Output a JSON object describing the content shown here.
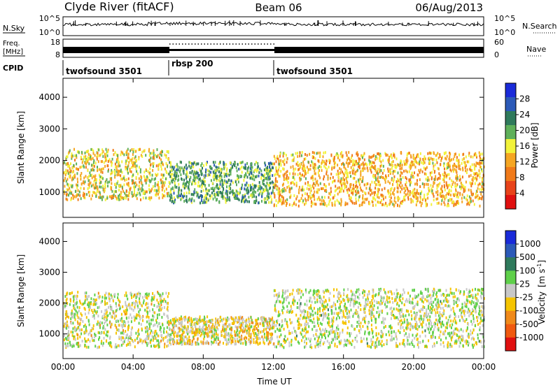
{
  "header": {
    "station": "Clyde River (fitACF)",
    "beam": "Beam 06",
    "date": "06/Aug/2013"
  },
  "panels": {
    "nsky_label": "N.Sky",
    "nsearch_label": "N.Search",
    "freq_label_line1": "Freq.",
    "freq_label_line2": "[MHz]",
    "nave_label": "Nave",
    "cpid_label": "CPID",
    "nsky_ticks": [
      "10^5",
      "10^0"
    ],
    "nsearch_ticks": [
      "10^5",
      "10^0"
    ],
    "freq_ticks": [
      "18",
      "8"
    ],
    "nave_ticks": [
      "60",
      "0"
    ]
  },
  "cpid_segments": [
    {
      "name": "twofsound 3501",
      "start_hour": 0,
      "end_hour": 6
    },
    {
      "name": "rbsp 200",
      "start_hour": 6,
      "end_hour": 12
    },
    {
      "name": "twofsound 3501",
      "start_hour": 12,
      "end_hour": 24
    }
  ],
  "colors": {
    "power_scale": [
      "#1a2bd9",
      "#2c5ab8",
      "#2f7a5c",
      "#5fb05a",
      "#f2f23a",
      "#f5a623",
      "#f07a1a",
      "#e8431a",
      "#e01010"
    ],
    "velocity_scale": [
      "#1a2bd9",
      "#2c5ab8",
      "#2f7a5c",
      "#5fd04a",
      "#c8c8c8",
      "#f5c400",
      "#f08a1a",
      "#f05a10",
      "#e01010"
    ]
  },
  "chart_data": [
    {
      "type": "heatmap",
      "panel": "power",
      "ylabel": "Slant Range [km]",
      "yticks": [
        1000,
        2000,
        3000,
        4000
      ],
      "ylim": [
        200,
        4600
      ],
      "xticks": [
        "00:00",
        "04:00",
        "08:00",
        "12:00",
        "16:00",
        "20:00",
        "00:00"
      ],
      "xlim_hours": [
        0,
        24
      ],
      "colorbar": {
        "label": "Power [dB]",
        "ticks": [
          "28",
          "24",
          "20",
          "16",
          "12",
          "8",
          "4"
        ],
        "range": [
          0,
          30
        ]
      },
      "bands": [
        {
          "start_hour": 0,
          "end_hour": 6,
          "range_km": [
            800,
            2400
          ],
          "power_db": 14
        },
        {
          "start_hour": 6,
          "end_hour": 12,
          "range_km": [
            700,
            2000
          ],
          "power_db": 20
        },
        {
          "start_hour": 12,
          "end_hour": 24,
          "range_km": [
            600,
            2300
          ],
          "power_db": 12
        }
      ]
    },
    {
      "type": "heatmap",
      "panel": "velocity",
      "ylabel": "Slant Range [km]",
      "xlabel": "Time UT",
      "yticks": [
        1000,
        2000,
        3000,
        4000
      ],
      "ylim": [
        200,
        4600
      ],
      "xticks": [
        "00:00",
        "04:00",
        "08:00",
        "12:00",
        "16:00",
        "20:00",
        "00:00"
      ],
      "xlim_hours": [
        0,
        24
      ],
      "colorbar": {
        "label": "Velocity",
        "label_unit": "[m s",
        "label_exp": "-1",
        "label_close": "]",
        "ticks": [
          "1000",
          "500",
          "100",
          "25",
          "-25",
          "-100",
          "-500",
          "-1000"
        ],
        "range": [
          -1200,
          1200
        ]
      },
      "bands": [
        {
          "start_hour": 0,
          "end_hour": 6,
          "range_km": [
            600,
            2400
          ],
          "velocity_ms": -25
        },
        {
          "start_hour": 6,
          "end_hour": 12,
          "range_km": [
            700,
            1600
          ],
          "velocity_ms": -150
        },
        {
          "start_hour": 12,
          "end_hour": 24,
          "range_km": [
            600,
            2500
          ],
          "velocity_ms": 10
        }
      ]
    }
  ]
}
